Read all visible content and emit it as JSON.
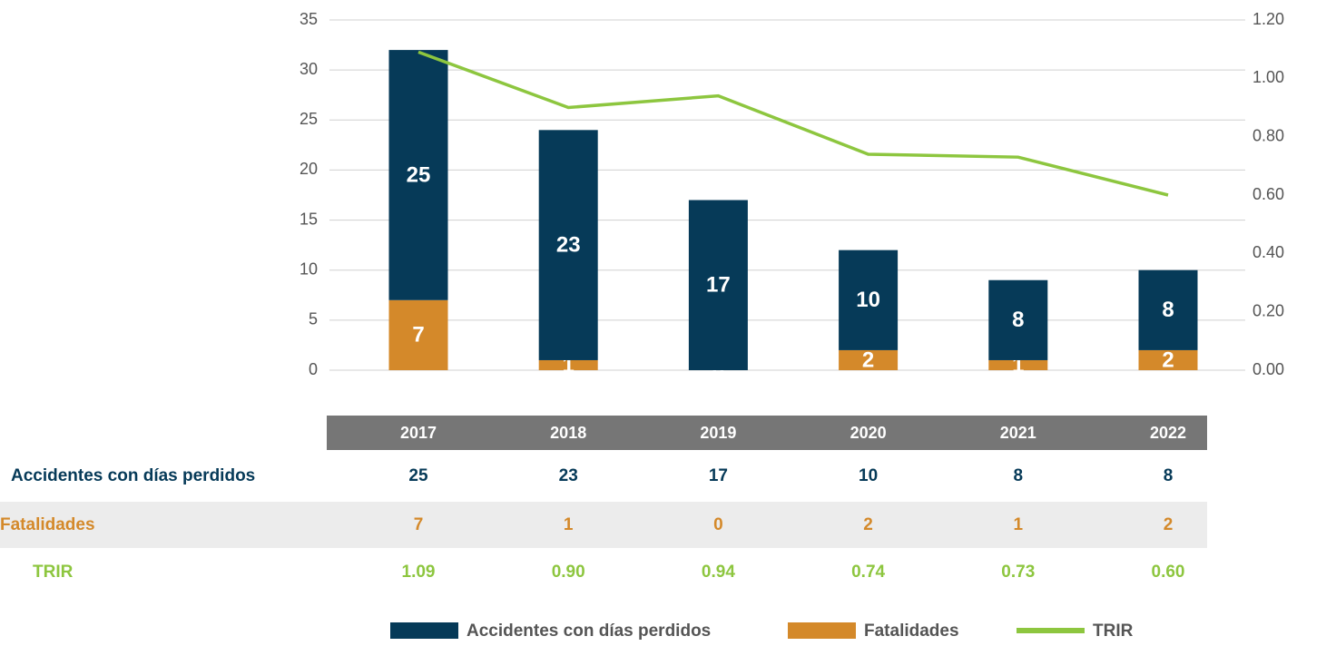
{
  "chart_data": {
    "type": "bar",
    "categories": [
      "2017",
      "2018",
      "2019",
      "2020",
      "2021",
      "2022"
    ],
    "series": [
      {
        "name": "Fatalidades",
        "color": "#d4892a",
        "values": [
          7,
          1,
          0,
          2,
          1,
          2
        ]
      },
      {
        "name": "Accidentes con días perdidos",
        "color": "#063a58",
        "values": [
          25,
          23,
          17,
          10,
          8,
          8
        ]
      },
      {
        "name": "TRIR",
        "color": "#8dc63f",
        "axis": "y2",
        "type": "line",
        "values": [
          1.09,
          0.9,
          0.94,
          0.74,
          0.73,
          0.6
        ],
        "value_labels": [
          "1.09",
          "0.90",
          "0.94",
          "0.74",
          "0.73",
          "0.60"
        ]
      }
    ],
    "ylim": [
      0,
      35
    ],
    "yticks": [
      0,
      5,
      10,
      15,
      20,
      25,
      30,
      35
    ],
    "y2lim": [
      0,
      1.2
    ],
    "y2ticks": [
      {
        "value": 0,
        "label": "0.00"
      },
      {
        "value": 0.2,
        "label": "0.20"
      },
      {
        "value": 0.4,
        "label": "0.40"
      },
      {
        "value": 0.6,
        "label": "0.60"
      },
      {
        "value": 0.8,
        "label": "0.80"
      },
      {
        "value": 1.0,
        "label": "1.00"
      },
      {
        "value": 1.2,
        "label": "1.20"
      }
    ],
    "grid": true,
    "legend": "bottom"
  }
}
